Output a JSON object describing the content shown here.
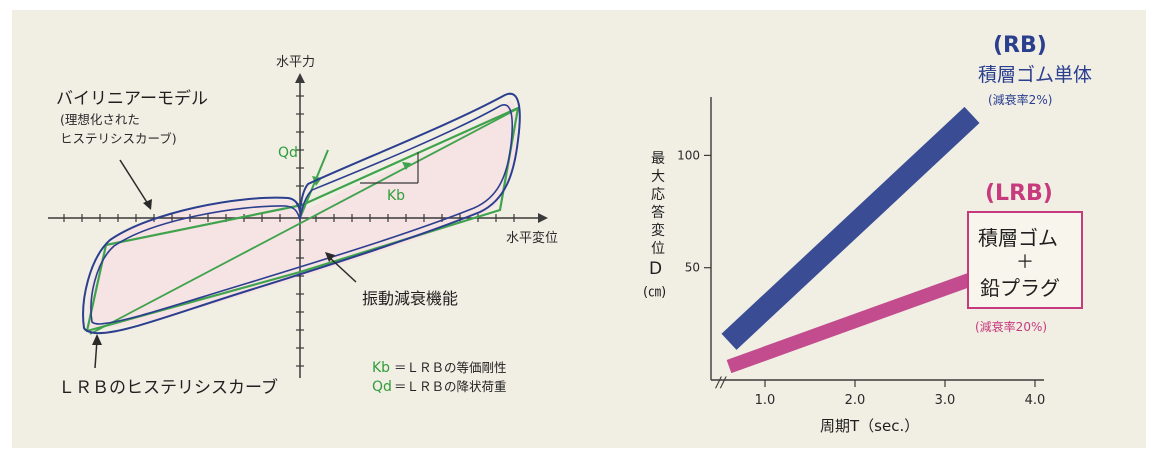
{
  "colors": {
    "background": "#f1eee4",
    "axis": "#3a3a3a",
    "green_model": "#3fa34d",
    "blue_curve": "#2c3f8f",
    "loop_fill": "#f6e3e3",
    "rb_bar": "#3a4d94",
    "lrb_bar": "#c24c8e",
    "rb_text": "#2b3f8f",
    "lrb_text": "#c73a7e"
  },
  "left_diagram": {
    "axis_y_label": "水平力",
    "axis_x_label": "水平変位",
    "bilinear_title": "バイリニアーモデル",
    "bilinear_sub1": "(理想化された",
    "bilinear_sub2": "ヒステリシスカーブ)",
    "qd_label": "Qd",
    "kb_label": "Kb",
    "damping_label": "振動減衰機能",
    "lrb_curve_label": "ＬＲＢのヒステリシスカーブ",
    "legend": [
      {
        "symbol": "Kb",
        "text": "＝ＬＲＢの等価剛性"
      },
      {
        "symbol": "Qd",
        "text": "＝ＬＲＢの降状荷重"
      }
    ]
  },
  "chart_data": {
    "type": "line",
    "xlabel": "周期T（sec.）",
    "ylabel_chars": [
      "最",
      "大",
      "応",
      "答",
      "変",
      "位",
      "D"
    ],
    "ylabel_unit": "(㎝)",
    "x_ticks": [
      "1.0",
      "2.0",
      "3.0",
      "4.0"
    ],
    "x_tick_values": [
      1.0,
      2.0,
      3.0,
      4.0
    ],
    "y_ticks": [
      "50",
      "100"
    ],
    "y_tick_values": [
      50,
      100
    ],
    "xlim": [
      0.4,
      4.1
    ],
    "ylim": [
      0,
      126
    ],
    "axis_break": "//",
    "series": [
      {
        "name": "(RB)",
        "color": "#3a4d94",
        "x": [
          0.6,
          3.3
        ],
        "y": [
          17,
          118
        ]
      },
      {
        "name": "(LRB)",
        "color": "#c24c8e",
        "x": [
          0.6,
          3.3
        ],
        "y": [
          6,
          45
        ]
      }
    ]
  },
  "rb_annotation": {
    "title": "(RB)",
    "line1": "積層ゴム単体",
    "damping": "(減衰率2%)"
  },
  "lrb_annotation": {
    "title": "(LRB)",
    "box_line1": "積層ゴム",
    "box_line2": "＋",
    "box_line3": "鉛プラグ",
    "damping": "(減衰率20%)"
  }
}
